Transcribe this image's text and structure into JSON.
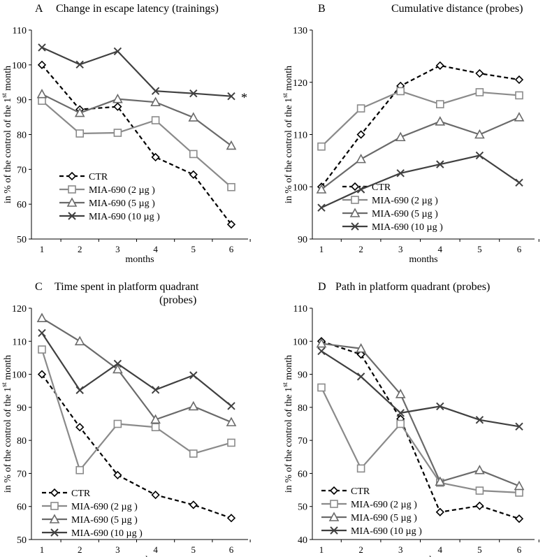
{
  "chart_data": [
    {
      "type": "line",
      "letter": "A",
      "title": "Change in escape latency (trainings)",
      "title2": "",
      "xlabel": "months",
      "ylabel": "in % of the control of the 1",
      "ylabel_sup": "st",
      "ylabel_end": " month",
      "ylim": [
        50,
        110
      ],
      "yticks": [
        50,
        60,
        70,
        80,
        90,
        100,
        110
      ],
      "categories": [
        "1",
        "2",
        "3",
        "4",
        "5",
        "6"
      ],
      "annotation": "*",
      "series": [
        {
          "name": "CTR",
          "values": [
            100,
            87.2,
            88,
            73.5,
            68.5,
            54.2
          ]
        },
        {
          "name": "MIA-690 (2 µg )",
          "values": [
            89.7,
            80.3,
            80.5,
            84.1,
            74.4,
            64.9
          ]
        },
        {
          "name": "MIA-690 (5 µg )",
          "values": [
            91.6,
            86.2,
            90.2,
            89.3,
            84.9,
            76.8
          ]
        },
        {
          "name": "MIA-690 (10 µg )",
          "values": [
            105,
            100.1,
            103.9,
            92.5,
            91.8,
            91
          ]
        }
      ]
    },
    {
      "type": "line",
      "letter": "B",
      "title": "Cumulative distance  (probes)",
      "title2": "",
      "xlabel": "months",
      "ylabel": "in % of the control of the 1",
      "ylabel_sup": "st",
      "ylabel_end": " month",
      "ylim": [
        90,
        130
      ],
      "yticks": [
        90,
        100,
        110,
        120,
        130
      ],
      "categories": [
        "1",
        "2",
        "3",
        "4",
        "5",
        "6"
      ],
      "series": [
        {
          "name": "CTR",
          "values": [
            100,
            110,
            119.3,
            123.2,
            121.7,
            120.5
          ]
        },
        {
          "name": "MIA-690 (2 µg )",
          "values": [
            107.7,
            115,
            118.3,
            115.8,
            118.1,
            117.5
          ]
        },
        {
          "name": "MIA-690 (5 µg )",
          "values": [
            99.5,
            105.3,
            109.5,
            112.5,
            110,
            113.3
          ]
        },
        {
          "name": "MIA-690 (10 µg )",
          "values": [
            96,
            99.5,
            102.6,
            104.3,
            106,
            100.8
          ]
        }
      ]
    },
    {
      "type": "line",
      "letter": "C",
      "title": "Time spent in  platform quadrant",
      "title2": "(probes)",
      "xlabel": "months",
      "ylabel": "in % of the control of the 1",
      "ylabel_sup": "st",
      "ylabel_end": " month",
      "ylim": [
        50,
        120
      ],
      "yticks": [
        50,
        60,
        70,
        80,
        90,
        100,
        110,
        120
      ],
      "categories": [
        "1",
        "2",
        "3",
        "4",
        "5",
        "6"
      ],
      "series": [
        {
          "name": "CTR",
          "values": [
            100,
            84,
            69.5,
            63.5,
            60.5,
            56.5
          ]
        },
        {
          "name": "MIA-690 (2 µg )",
          "values": [
            107.5,
            71,
            85,
            84,
            76,
            79.3
          ]
        },
        {
          "name": "MIA-690 (5 µg )",
          "values": [
            117,
            110,
            101.5,
            86.3,
            90.3,
            85.5
          ]
        },
        {
          "name": "MIA-690 (10 µg )",
          "values": [
            112.5,
            95.2,
            103.2,
            95.3,
            99.7,
            90.4
          ]
        }
      ]
    },
    {
      "type": "line",
      "letter": "D",
      "title": "Path in platform quadrant (probes)",
      "title2": "",
      "xlabel": "months",
      "ylabel": "in % of the control of the 1",
      "ylabel_sup": "st",
      "ylabel_end": " month",
      "ylim": [
        40,
        110
      ],
      "yticks": [
        40,
        50,
        60,
        70,
        80,
        90,
        100,
        110
      ],
      "categories": [
        "1",
        "2",
        "3",
        "4",
        "5",
        "6"
      ],
      "series": [
        {
          "name": "CTR",
          "values": [
            100,
            96,
            76.5,
            48.3,
            50.2,
            46.3
          ]
        },
        {
          "name": "MIA-690 (2 µg )",
          "values": [
            86,
            61.5,
            75,
            57.2,
            54.8,
            54.2
          ]
        },
        {
          "name": "MIA-690 (5 µg )",
          "values": [
            99.3,
            97.8,
            84,
            57.5,
            61,
            56.2
          ]
        },
        {
          "name": "MIA-690 (10 µg )",
          "values": [
            97,
            89.3,
            78.3,
            80.3,
            76.2,
            74.2
          ]
        }
      ]
    }
  ],
  "styles": {
    "colors": [
      "#000000",
      "#8a8a8a",
      "#6a6a6a",
      "#404040"
    ],
    "markers": [
      "diamond",
      "square",
      "triangle",
      "cross"
    ]
  }
}
